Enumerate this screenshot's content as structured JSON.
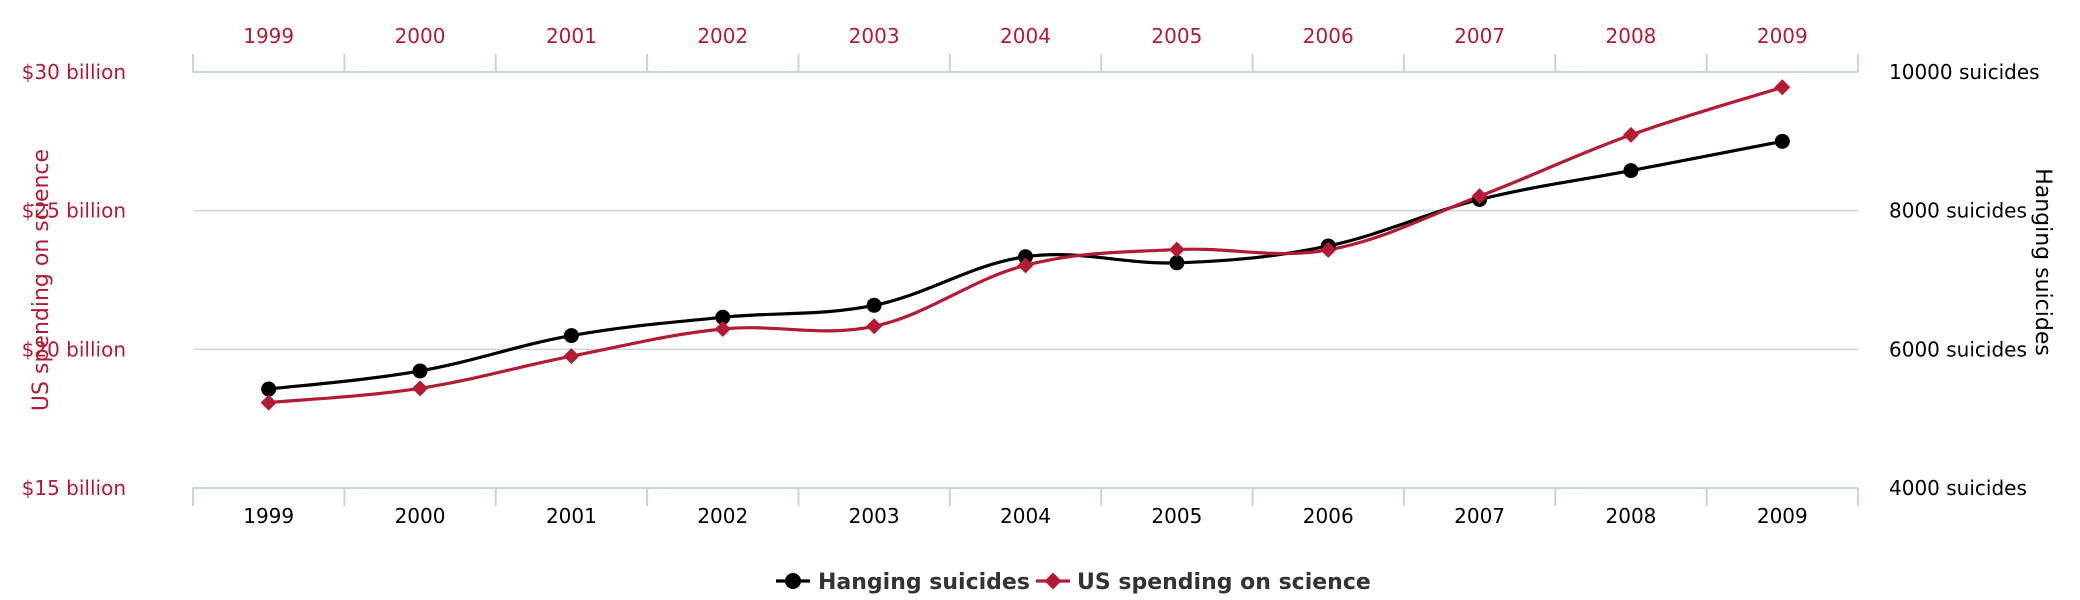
{
  "chart_data": {
    "type": "line",
    "categories": [
      "1999",
      "2000",
      "2001",
      "2002",
      "2003",
      "2004",
      "2005",
      "2006",
      "2007",
      "2008",
      "2009"
    ],
    "series": [
      {
        "name": "Hanging suicides",
        "axis": "right",
        "color": "#000000",
        "marker": "circle",
        "values": [
          5427,
          5688,
          6198,
          6462,
          6635,
          7336,
          7248,
          7491,
          8161,
          8578,
          9000
        ]
      },
      {
        "name": "US spending on science",
        "axis": "left",
        "color": "#B31B34",
        "marker": "diamond",
        "values": [
          18.079,
          18.594,
          19.753,
          20.734,
          20.831,
          23.029,
          23.597,
          23.584,
          25.525,
          27.731,
          29.449
        ]
      }
    ],
    "y_left": {
      "title": "US spending on science",
      "range": [
        15,
        30
      ],
      "ticks": [
        {
          "value": 30,
          "label": "$30 billion"
        },
        {
          "value": 25,
          "label": "$25 billion"
        },
        {
          "value": 20,
          "label": "$20 billion"
        },
        {
          "value": 15,
          "label": "$15 billion"
        }
      ],
      "color": "#B31B34"
    },
    "y_right": {
      "title": "Hanging suicides",
      "range": [
        4000,
        10000
      ],
      "ticks": [
        {
          "value": 10000,
          "label": "10000 suicides"
        },
        {
          "value": 8000,
          "label": "8000 suicides"
        },
        {
          "value": 6000,
          "label": "6000 suicides"
        },
        {
          "value": 4000,
          "label": "4000 suicides"
        }
      ],
      "color": "#000000"
    },
    "grid": true,
    "legend_position": "bottom-center",
    "top_axis_color": "#B31B34",
    "bottom_axis_color": "#000000",
    "axis_line_color": "#C4D4E4",
    "grid_color": "#C8D4E0"
  }
}
